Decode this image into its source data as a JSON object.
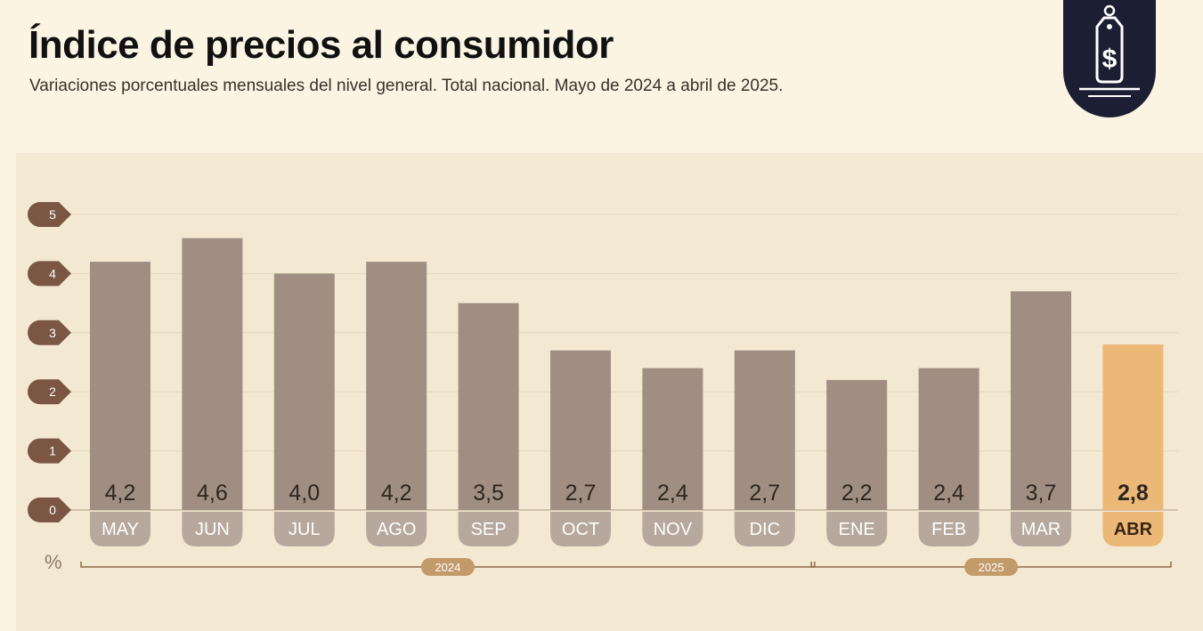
{
  "header": {
    "title": "Índice de precios al consumidor",
    "subtitle": "Variaciones porcentuales mensuales del nivel general. Total nacional. Mayo de 2024 a abril de 2025."
  },
  "logo": {
    "icon": "price-tag-dollar-icon"
  },
  "colors": {
    "bar": "#a08e82",
    "highlight": "#ecb878",
    "tick_marker": "#7b5643",
    "pill": "#b6a89c",
    "year_line": "#8f6a45",
    "year_pill": "#c39a69"
  },
  "chart_data": {
    "type": "bar",
    "title": "Índice de precios al consumidor",
    "ylabel": "%",
    "ylim": [
      0,
      5
    ],
    "yticks": [
      "0",
      "1",
      "2",
      "3",
      "4",
      "5"
    ],
    "grid": true,
    "categories": [
      "MAY",
      "JUN",
      "JUL",
      "AGO",
      "SEP",
      "OCT",
      "NOV",
      "DIC",
      "ENE",
      "FEB",
      "MAR",
      "ABR"
    ],
    "values": [
      4.2,
      4.6,
      4.0,
      4.2,
      3.5,
      2.7,
      2.4,
      2.7,
      2.2,
      2.4,
      3.7,
      2.8
    ],
    "value_labels": [
      "4,2",
      "4,6",
      "4,0",
      "4,2",
      "3,5",
      "2,7",
      "2,4",
      "2,7",
      "2,2",
      "2,4",
      "3,7",
      "2,8"
    ],
    "highlight_index": 11,
    "year_groups": [
      {
        "label": "2024",
        "start": 0,
        "end": 7
      },
      {
        "label": "2025",
        "start": 8,
        "end": 11
      }
    ]
  }
}
